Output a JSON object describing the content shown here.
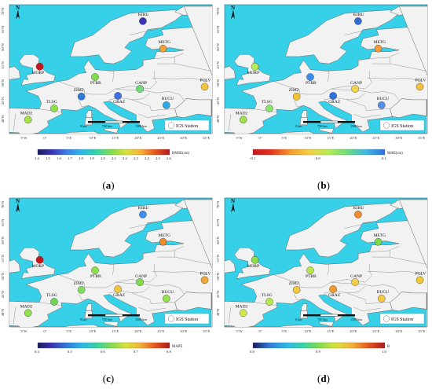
{
  "legend_label": "IGS Station",
  "scale_labels": [
    "0 km",
    "750 km",
    "1500 km"
  ],
  "north_label": "N",
  "lat_labels": [
    "70°N",
    "65°N",
    "60°N",
    "55°N",
    "50°N",
    "45°N",
    "40°N"
  ],
  "lon_labels": [
    "5°W",
    "0°",
    "5°E",
    "10°E",
    "15°E",
    "20°E",
    "25°E",
    "30°E",
    "35°E"
  ],
  "panels": [
    {
      "caption_letter": "a",
      "metric_label": "RMSE(cm)",
      "colorbar_ticks": [
        "1.4",
        "1.5",
        "1.6",
        "1.7",
        "1.8",
        "1.9",
        "2.0",
        "2.1",
        "2.2",
        "2.3",
        "2.4",
        "2.5",
        "2.6"
      ],
      "colors": [
        "#3b35b5",
        "#f0a23a",
        "#c4161c",
        "#7fdb52",
        "#2e7ad9",
        "#3f6fe0",
        "#6ddb7a",
        "#f4c63c",
        "#2aa9e4",
        "#8fe04a",
        "#a4e24a",
        "#8fe05a"
      ]
    },
    {
      "caption_letter": "b",
      "metric_label": "MAE(cm)",
      "colorbar_ticks": [
        "-0.1",
        "0.0",
        "0.1"
      ],
      "colors": [
        "#3468d4",
        "#f39c3a",
        "#b6ec58",
        "#3d8df0",
        "#f4c430",
        "#2e6fe0",
        "#f1d64a",
        "#f4c040",
        "#5a8ee8",
        "#8be26a",
        "#9fe04a",
        "#e8331c"
      ]
    },
    {
      "caption_letter": "c",
      "metric_label": "MAPE",
      "colorbar_ticks": [
        "0.4",
        "0.5",
        "0.6",
        "0.7",
        "0.8"
      ],
      "colors": [
        "#3a8ff0",
        "#f08a2a",
        "#c4161c",
        "#8ee04a",
        "#7fe060",
        "#f0c840",
        "#7fdb4a",
        "#f0a830",
        "#93e24a",
        "#6ed55a",
        "#8fe04a",
        "#f09a30"
      ]
    },
    {
      "caption_letter": "d",
      "metric_label": "R",
      "colorbar_ticks": [
        "0.8",
        "0.9",
        "1.0"
      ],
      "colors": [
        "#f08a2a",
        "#7fdb4a",
        "#8fe04a",
        "#b6e84a",
        "#f4c840",
        "#f39a30",
        "#f2d048",
        "#f0c830",
        "#f4c840",
        "#b6e84a",
        "#d6e84a",
        "#7fdb5a"
      ]
    }
  ],
  "stations": [
    {
      "name": "KIRU",
      "lon": 20.97,
      "lat": 67.86
    },
    {
      "name": "METG",
      "lon": 25.4,
      "lat": 60.24
    },
    {
      "name": "MORP",
      "lon": -1.69,
      "lat": 55.21
    },
    {
      "name": "PTBB",
      "lon": 10.46,
      "lat": 52.3
    },
    {
      "name": "ZIM2",
      "lon": 7.47,
      "lat": 46.88
    },
    {
      "name": "GRAZ",
      "lon": 15.49,
      "lat": 47.07
    },
    {
      "name": "GANP",
      "lon": 20.32,
      "lat": 49.03
    },
    {
      "name": "POLV",
      "lon": 34.54,
      "lat": 49.6
    },
    {
      "name": "BUCU",
      "lon": 26.13,
      "lat": 44.46
    },
    {
      "name": "TLSG",
      "lon": 1.48,
      "lat": 43.56
    },
    {
      "name": "MAD2",
      "lon": -4.25,
      "lat": 40.43
    },
    {
      "name": "IGS-legend",
      "lon": 0,
      "lat": 0
    }
  ]
}
